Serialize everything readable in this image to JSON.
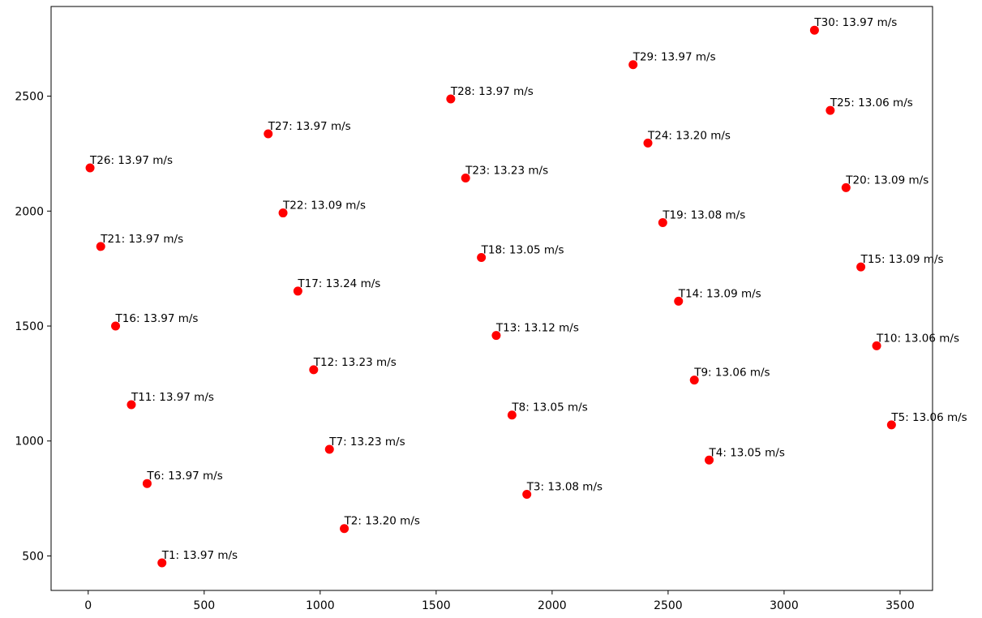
{
  "chart_data": {
    "type": "scatter",
    "title": "",
    "xlabel": "",
    "ylabel": "",
    "xlim": [
      -160,
      3640
    ],
    "ylim": [
      350,
      2890
    ],
    "xticks": [
      0,
      500,
      1000,
      1500,
      2000,
      2500,
      3000,
      3500
    ],
    "yticks": [
      500,
      1000,
      1500,
      2000,
      2500
    ],
    "grid": false,
    "point_color": "#ff0000",
    "points": [
      {
        "label": "T1: 13.97 m/s",
        "x": 318,
        "y": 470
      },
      {
        "label": "T2: 13.20 m/s",
        "x": 1104,
        "y": 619
      },
      {
        "label": "T3: 13.08 m/s",
        "x": 1891,
        "y": 768
      },
      {
        "label": "T4: 13.05 m/s",
        "x": 2677,
        "y": 917
      },
      {
        "label": "T5: 13.06 m/s",
        "x": 3463,
        "y": 1070
      },
      {
        "label": "T6: 13.97 m/s",
        "x": 254,
        "y": 815
      },
      {
        "label": "T7: 13.23 m/s",
        "x": 1040,
        "y": 964
      },
      {
        "label": "T8: 13.05 m/s",
        "x": 1827,
        "y": 1113
      },
      {
        "label": "T9: 13.06 m/s",
        "x": 2613,
        "y": 1265
      },
      {
        "label": "T10: 13.06 m/s",
        "x": 3399,
        "y": 1414
      },
      {
        "label": "T11: 13.97 m/s",
        "x": 186,
        "y": 1158
      },
      {
        "label": "T12: 13.23 m/s",
        "x": 972,
        "y": 1310
      },
      {
        "label": "T13: 13.12 m/s",
        "x": 1759,
        "y": 1459
      },
      {
        "label": "T14: 13.09 m/s",
        "x": 2545,
        "y": 1608
      },
      {
        "label": "T15: 13.09 m/s",
        "x": 3331,
        "y": 1757
      },
      {
        "label": "T16: 13.97 m/s",
        "x": 118,
        "y": 1500
      },
      {
        "label": "T17: 13.24 m/s",
        "x": 904,
        "y": 1652
      },
      {
        "label": "T18: 13.05 m/s",
        "x": 1695,
        "y": 1798
      },
      {
        "label": "T19: 13.08 m/s",
        "x": 2477,
        "y": 1950
      },
      {
        "label": "T20: 13.09 m/s",
        "x": 3267,
        "y": 2102
      },
      {
        "label": "T21: 13.97 m/s",
        "x": 54,
        "y": 1846
      },
      {
        "label": "T22: 13.09 m/s",
        "x": 840,
        "y": 1992
      },
      {
        "label": "T23: 13.23 m/s",
        "x": 1627,
        "y": 2144
      },
      {
        "label": "T24: 13.20 m/s",
        "x": 2413,
        "y": 2296
      },
      {
        "label": "T25: 13.06 m/s",
        "x": 3199,
        "y": 2438
      },
      {
        "label": "T26: 13.97 m/s",
        "x": 8,
        "y": 2188
      },
      {
        "label": "T27: 13.97 m/s",
        "x": 776,
        "y": 2336
      },
      {
        "label": "T28: 13.97 m/s",
        "x": 1563,
        "y": 2488
      },
      {
        "label": "T29: 13.97 m/s",
        "x": 2349,
        "y": 2637
      },
      {
        "label": "T30: 13.97 m/s",
        "x": 3131,
        "y": 2787
      }
    ]
  }
}
